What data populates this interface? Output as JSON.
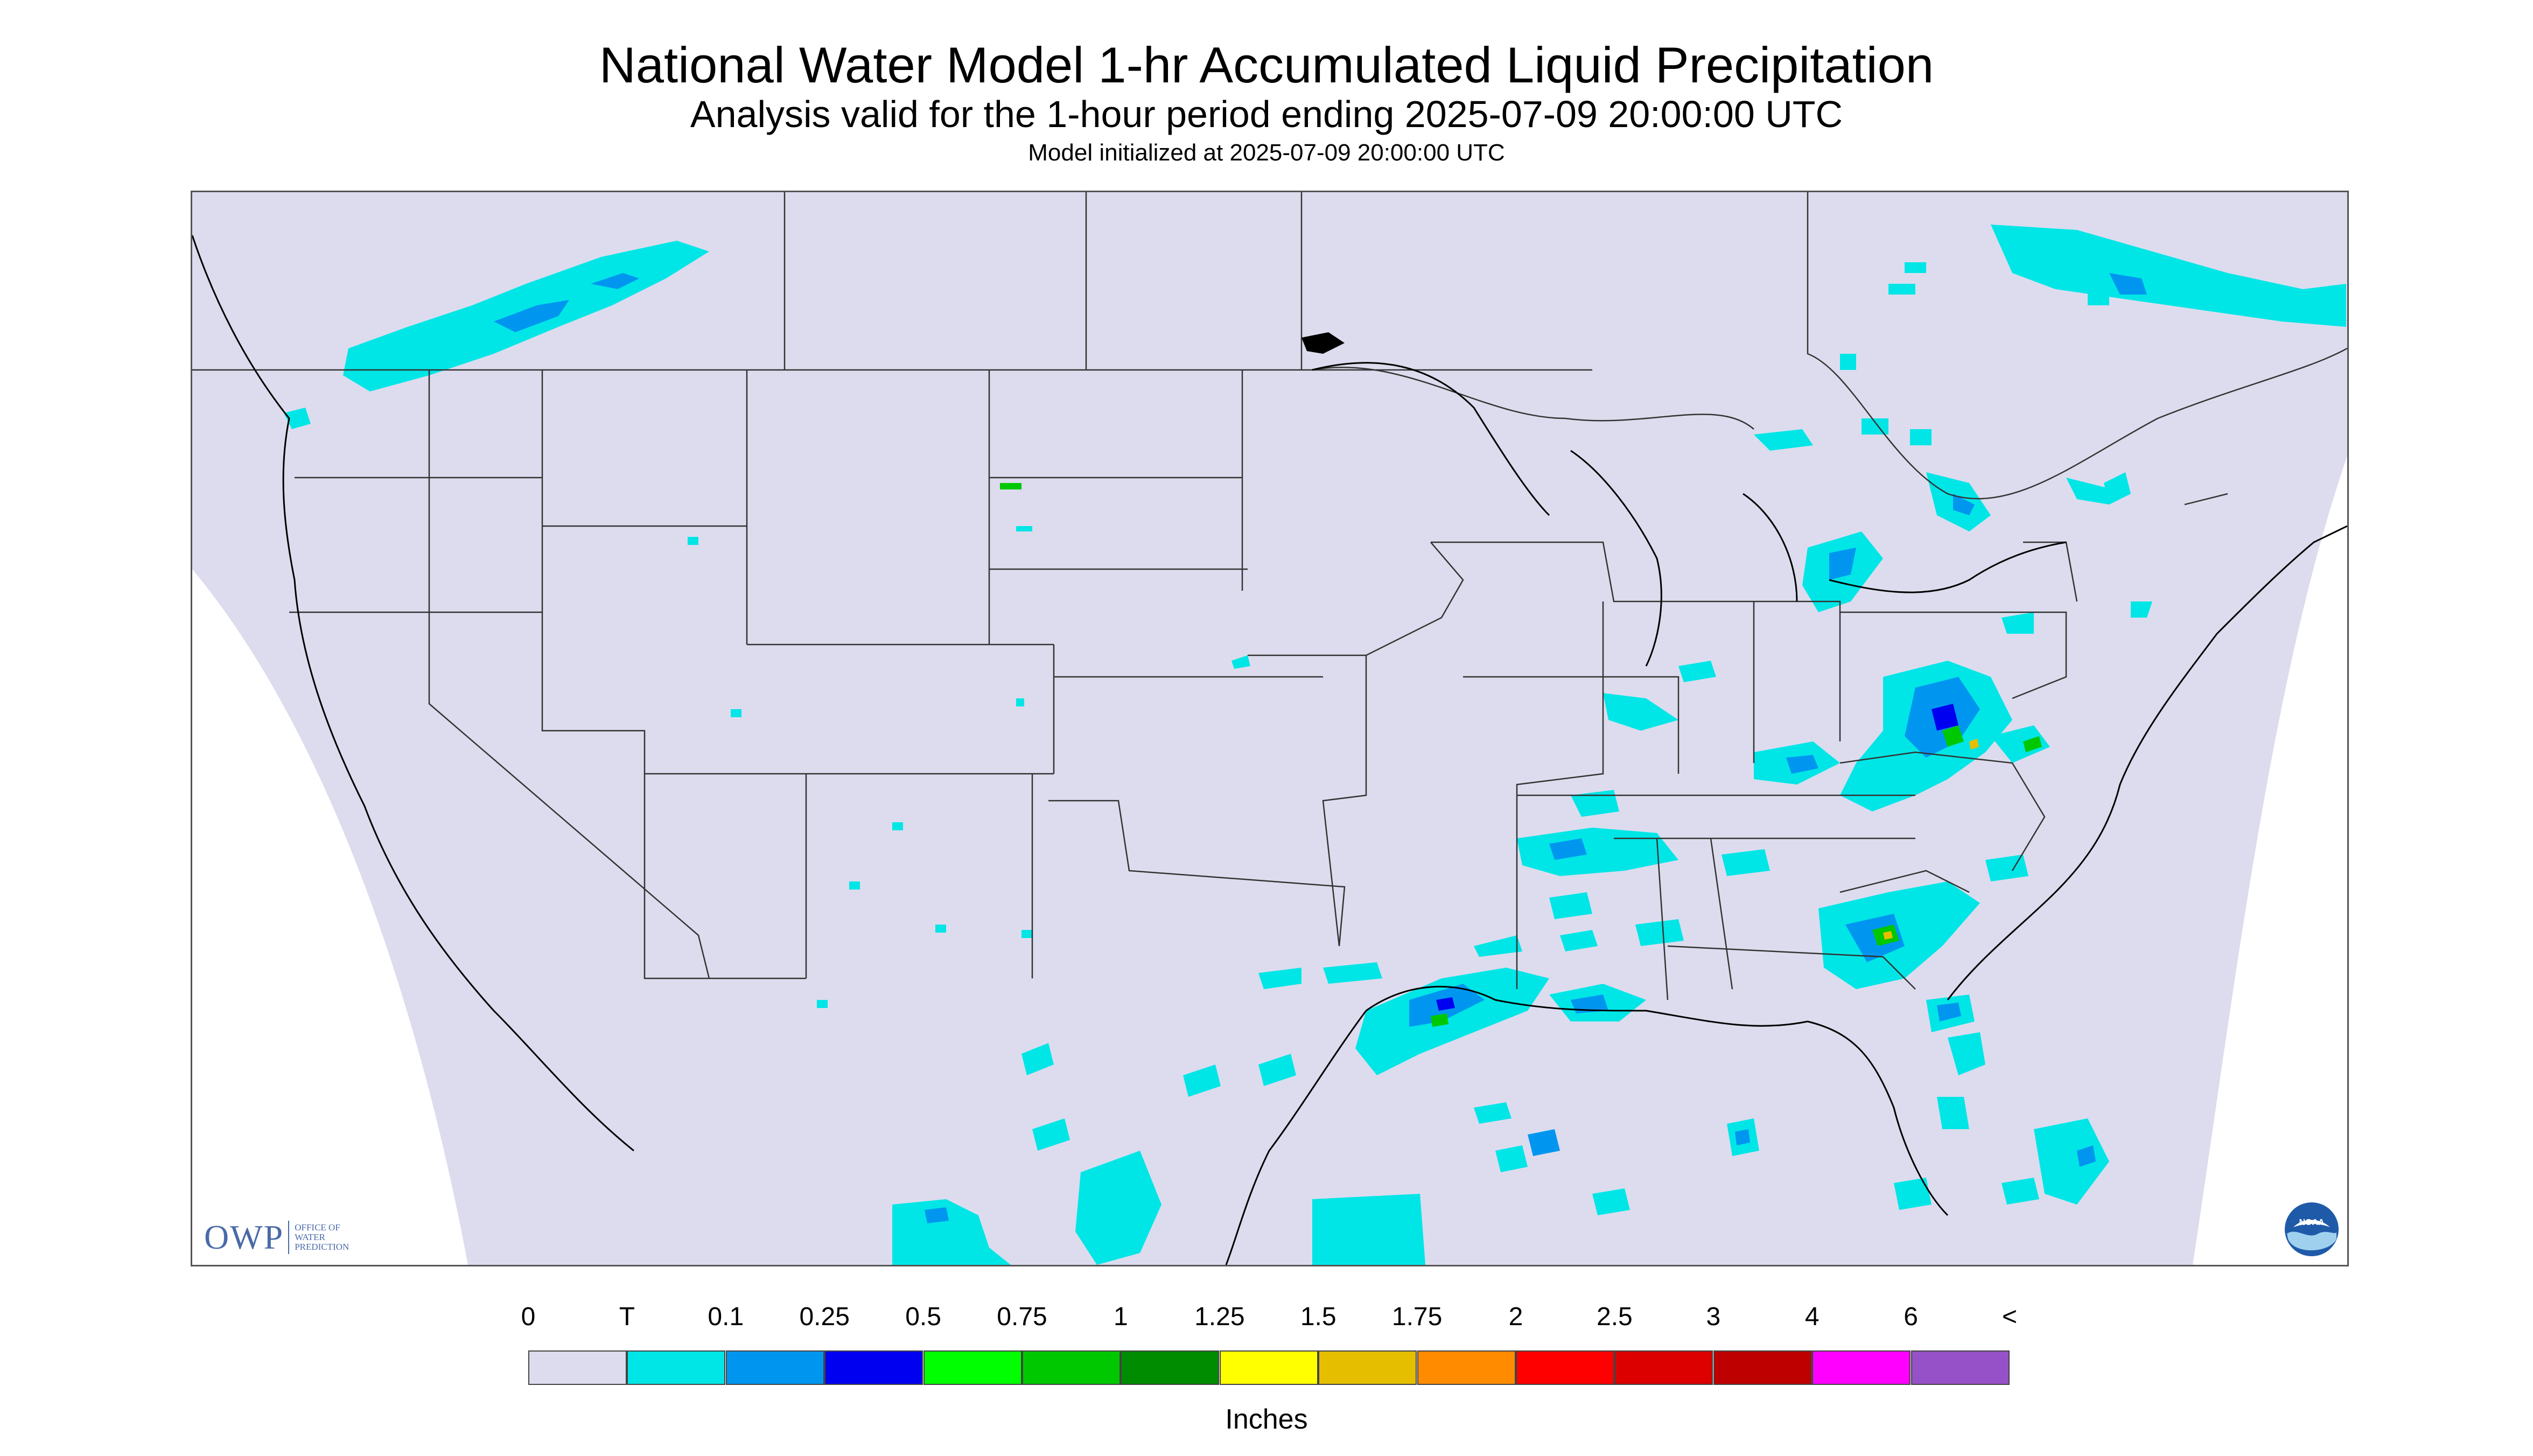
{
  "title": "National Water Model 1-hr Accumulated Liquid Precipitation",
  "subtitle": "Analysis valid for the 1-hour period ending 2025-07-09 20:00:00 UTC",
  "init_line": "Model initialized at 2025-07-09 20:00:00 UTC",
  "logo_owp": {
    "letters": "OWP",
    "subtext": "OFFICE OF\nWATER\nPREDICTION"
  },
  "logo_noaa": {
    "text": "NOAA",
    "icon": "noaa-logo-icon"
  },
  "colors": {
    "map_background": "#dcdcee",
    "outside_projection": "#ffffff",
    "boundary_lines": "#333333"
  },
  "legend": {
    "unit_label": "Inches",
    "tick_labels": [
      "0",
      "T",
      "0.1",
      "0.25",
      "0.5",
      "0.75",
      "1",
      "1.25",
      "1.5",
      "1.75",
      "2",
      "2.5",
      "3",
      "4",
      "6",
      "<"
    ],
    "colors": [
      "#dcdcee",
      "#00e6e6",
      "#0096f0",
      "#0000f0",
      "#00ff00",
      "#00c800",
      "#008c00",
      "#ffff00",
      "#e6be00",
      "#ff8c00",
      "#ff0000",
      "#dc0000",
      "#be0000",
      "#ff00ff",
      "#9650c8"
    ]
  }
}
